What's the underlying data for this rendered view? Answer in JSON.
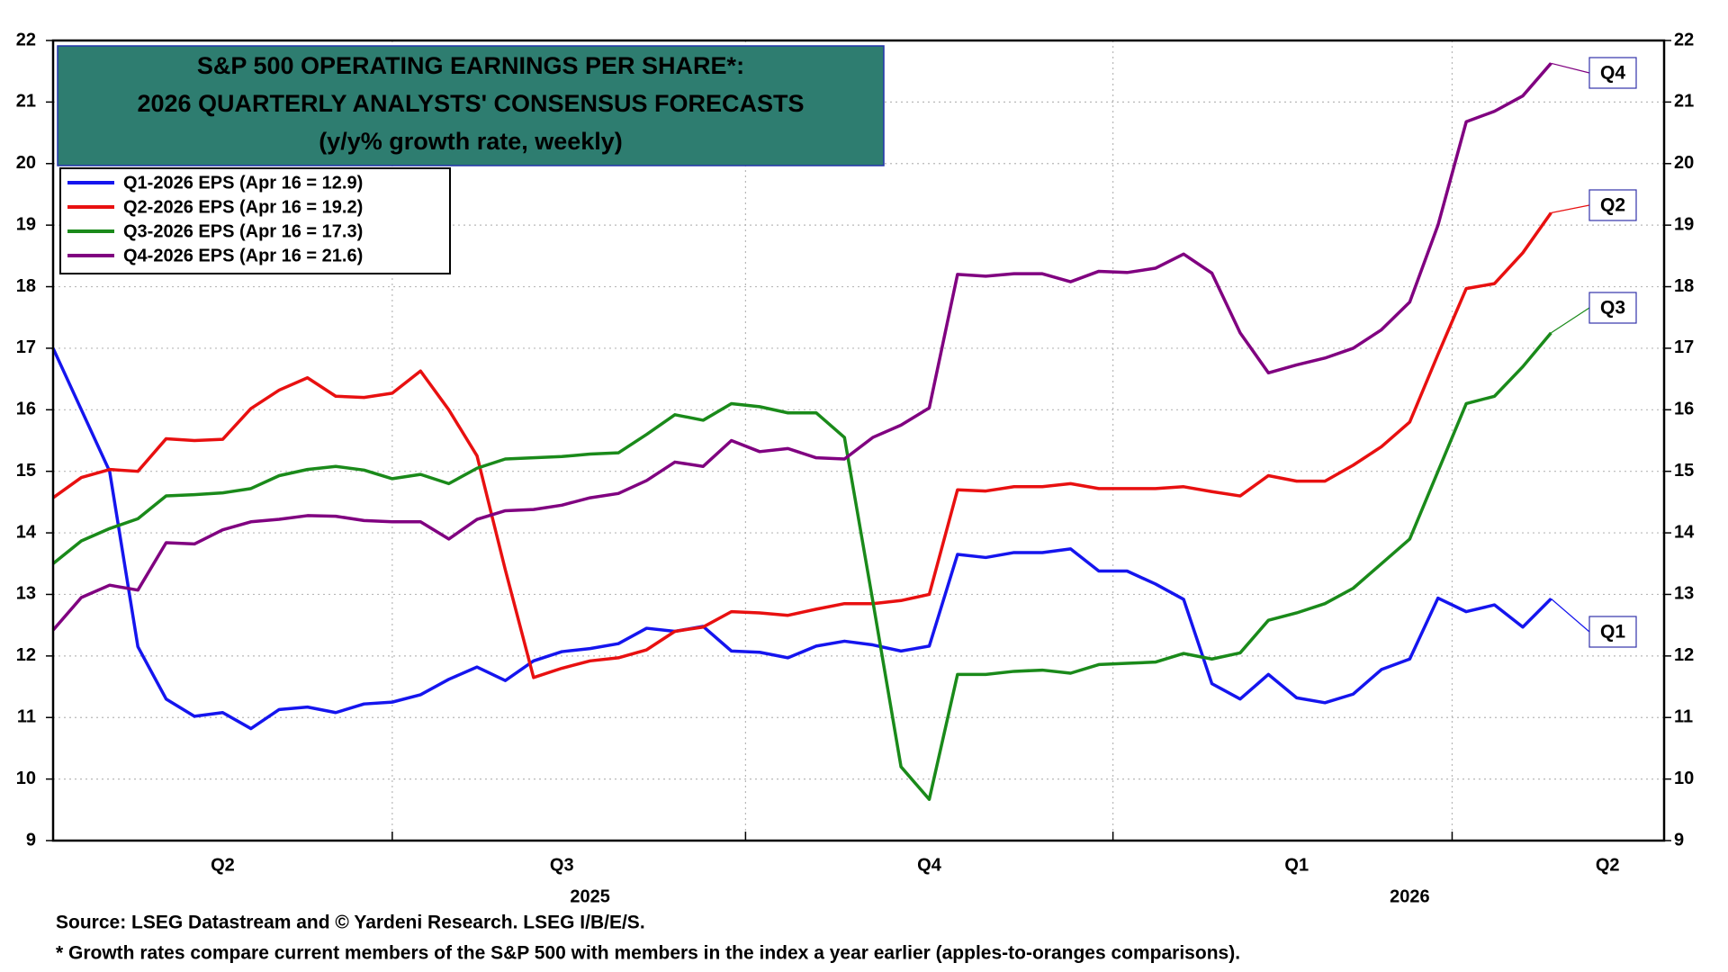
{
  "chart_data": {
    "type": "line",
    "title_lines": [
      "S&P 500 OPERATING EARNINGS PER SHARE*:",
      "2026 QUARTERLY ANALYSTS' CONSENSUS FORECASTS",
      "(y/y% growth rate, weekly)"
    ],
    "categories": [
      null,
      null,
      null,
      null,
      null,
      null,
      "Q2",
      null,
      null,
      null,
      null,
      null,
      null,
      null,
      null,
      null,
      null,
      null,
      "Q3",
      null,
      null,
      null,
      null,
      null,
      null,
      null,
      null,
      null,
      null,
      null,
      null,
      "Q4",
      null,
      null,
      null,
      null,
      null,
      null,
      null,
      null,
      null,
      null,
      null,
      null,
      "Q1",
      null,
      null,
      null,
      null,
      null,
      null,
      null,
      null,
      null,
      null,
      "Q2",
      null,
      null
    ],
    "years": [
      null,
      null,
      null,
      null,
      null,
      null,
      null,
      null,
      null,
      null,
      null,
      null,
      null,
      null,
      null,
      null,
      null,
      null,
      null,
      "2025",
      null,
      null,
      null,
      null,
      null,
      null,
      null,
      null,
      null,
      null,
      null,
      null,
      null,
      null,
      null,
      null,
      null,
      null,
      null,
      null,
      null,
      null,
      null,
      null,
      null,
      null,
      null,
      null,
      "2026",
      null,
      null,
      null,
      null,
      null,
      null,
      null,
      null,
      null
    ],
    "series": [
      {
        "name": "Q1-2026 EPS (Apr 16 = 12.9)",
        "end_label": "Q1",
        "color": "#1515ee",
        "values": [
          17.0,
          16.0,
          15.0,
          12.15,
          11.3,
          11.02,
          11.08,
          10.82,
          11.13,
          11.17,
          11.08,
          11.22,
          11.25,
          11.37,
          11.62,
          11.82,
          11.6,
          11.92,
          12.07,
          12.12,
          12.2,
          12.45,
          12.4,
          12.48,
          12.08,
          12.06,
          11.97,
          12.16,
          12.24,
          12.18,
          12.08,
          12.16,
          13.65,
          13.6,
          13.68,
          13.68,
          13.74,
          13.38,
          13.38,
          13.17,
          12.92,
          11.55,
          11.3,
          11.7,
          11.32,
          11.24,
          11.38,
          11.78,
          11.95,
          12.94,
          12.72,
          12.83,
          12.47,
          12.93,
          null,
          null,
          null,
          null
        ]
      },
      {
        "name": "Q2-2026 EPS (Apr 16 = 19.2)",
        "end_label": "Q2",
        "color": "#e81010",
        "values": [
          14.57,
          14.9,
          15.03,
          15.0,
          15.53,
          15.5,
          15.52,
          16.02,
          16.32,
          16.52,
          16.22,
          16.2,
          16.27,
          16.63,
          16.0,
          15.25,
          13.4,
          11.65,
          11.8,
          11.92,
          11.97,
          12.1,
          12.4,
          12.47,
          12.72,
          12.7,
          12.66,
          12.76,
          12.85,
          12.85,
          12.9,
          13.0,
          14.7,
          14.68,
          14.75,
          14.75,
          14.8,
          14.72,
          14.72,
          14.72,
          14.75,
          14.67,
          14.6,
          14.93,
          14.84,
          14.84,
          15.1,
          15.4,
          15.8,
          16.9,
          17.97,
          18.05,
          18.55,
          19.2,
          null,
          null,
          null,
          null
        ]
      },
      {
        "name": "Q3-2026 EPS (Apr 16 = 17.3)",
        "end_label": "Q3",
        "color": "#1a8a1a",
        "values": [
          13.5,
          13.87,
          14.07,
          14.23,
          14.6,
          14.62,
          14.65,
          14.72,
          14.93,
          15.03,
          15.08,
          15.02,
          14.88,
          14.95,
          14.8,
          15.05,
          15.2,
          15.22,
          15.24,
          15.28,
          15.3,
          15.6,
          15.92,
          15.83,
          16.1,
          16.05,
          15.95,
          15.95,
          15.55,
          12.9,
          10.2,
          9.67,
          11.7,
          11.7,
          11.75,
          11.77,
          11.72,
          11.86,
          11.88,
          11.9,
          12.04,
          11.95,
          12.05,
          12.58,
          12.7,
          12.85,
          13.1,
          13.5,
          13.9,
          15.0,
          16.1,
          16.22,
          16.7,
          17.25,
          null,
          null,
          null,
          null
        ]
      },
      {
        "name": "Q4-2026 EPS (Apr 16 = 21.6)",
        "end_label": "Q4",
        "color": "#800080",
        "values": [
          12.42,
          12.95,
          13.15,
          13.07,
          13.84,
          13.82,
          14.05,
          14.18,
          14.22,
          14.28,
          14.27,
          14.2,
          14.18,
          14.18,
          13.9,
          14.22,
          14.36,
          14.38,
          14.45,
          14.57,
          14.64,
          14.85,
          15.15,
          15.08,
          15.5,
          15.32,
          15.37,
          15.22,
          15.2,
          15.55,
          15.75,
          16.03,
          18.2,
          18.17,
          18.21,
          18.21,
          18.08,
          18.25,
          18.23,
          18.3,
          18.53,
          18.22,
          17.25,
          16.6,
          16.73,
          16.84,
          17.0,
          17.3,
          17.75,
          19.0,
          20.68,
          20.85,
          21.1,
          21.63,
          null,
          null,
          null,
          null
        ]
      }
    ],
    "ylim": [
      9,
      22
    ],
    "yticks": [
      9,
      10,
      11,
      12,
      13,
      14,
      15,
      16,
      17,
      18,
      19,
      20,
      21,
      22
    ],
    "grid": true,
    "legend": "upper left",
    "source": "Source: LSEG Datastream and © Yardeni Research. LSEG I/B/E/S.",
    "footnote": "* Growth rates compare current members of the S&P 500 with members in the index a year earlier (apples-to-oranges comparisons)."
  }
}
